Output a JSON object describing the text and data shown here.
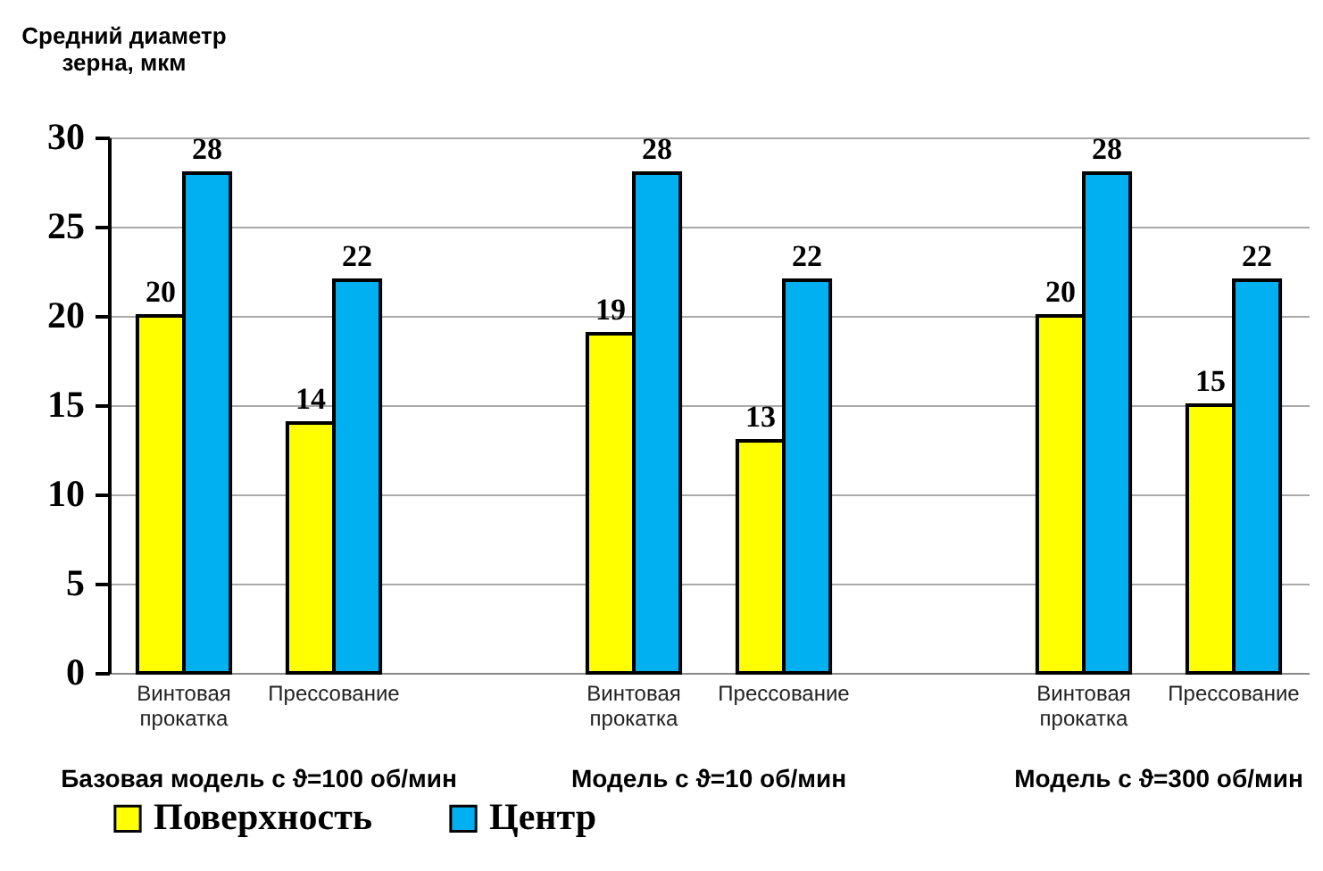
{
  "chart_data": {
    "type": "bar",
    "ylabel": "Средний диаметр зерна, мкм",
    "categories": [
      "Винтовая прокатка",
      "Прессование",
      null,
      "Винтовая прокатка",
      "Прессование",
      null,
      "Винтовая прокатка",
      "Прессование"
    ],
    "series": [
      {
        "name": "Поверхность",
        "color": "#ffff00",
        "values": [
          20,
          14,
          null,
          19,
          13,
          null,
          20,
          15
        ]
      },
      {
        "name": "Центр",
        "color": "#00b0f0",
        "values": [
          28,
          22,
          null,
          28,
          22,
          null,
          28,
          22
        ]
      }
    ],
    "ylim": [
      0,
      30
    ],
    "yticks": [
      0,
      5,
      10,
      15,
      20,
      25,
      30
    ],
    "grid": "y",
    "legend": "bottom",
    "data_labels": true,
    "annotations": [
      "Базовая модель с ϑ=100 об/мин",
      "Модель с ϑ=10 об/мин",
      "Модель с ϑ=300 об/мин"
    ]
  }
}
